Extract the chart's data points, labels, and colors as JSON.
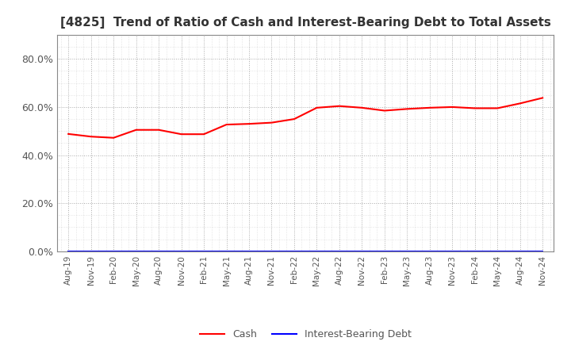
{
  "title": "[4825]  Trend of Ratio of Cash and Interest-Bearing Debt to Total Assets",
  "title_fontsize": 11,
  "ylim": [
    0.0,
    0.9
  ],
  "yticks": [
    0.0,
    0.2,
    0.4,
    0.6,
    0.8
  ],
  "ytick_labels": [
    "0.0%",
    "20.0%",
    "40.0%",
    "60.0%",
    "80.0%"
  ],
  "background_color": "#ffffff",
  "plot_bg_color": "#ffffff",
  "grid_color": "#aaaaaa",
  "cash_color": "#ff0000",
  "debt_color": "#0000ff",
  "x_labels": [
    "Aug-19",
    "Nov-19",
    "Feb-20",
    "May-20",
    "Aug-20",
    "Nov-20",
    "Feb-21",
    "May-21",
    "Aug-21",
    "Nov-21",
    "Feb-22",
    "May-22",
    "Aug-22",
    "Nov-22",
    "Feb-23",
    "May-23",
    "Aug-23",
    "Nov-23",
    "Feb-24",
    "May-24",
    "Aug-24",
    "Nov-24"
  ],
  "cash_values": [
    0.488,
    0.477,
    0.472,
    0.505,
    0.505,
    0.487,
    0.487,
    0.527,
    0.53,
    0.535,
    0.55,
    0.597,
    0.604,
    0.597,
    0.585,
    0.592,
    0.597,
    0.6,
    0.595,
    0.595,
    0.615,
    0.638
  ],
  "debt_values": [
    0.0,
    0.0,
    0.0,
    0.0,
    0.0,
    0.0,
    0.0,
    0.0,
    0.0,
    0.0,
    0.0,
    0.0,
    0.0,
    0.0,
    0.0,
    0.0,
    0.0,
    0.0,
    0.0,
    0.0,
    0.0,
    0.0
  ],
  "legend_cash": "Cash",
  "legend_debt": "Interest-Bearing Debt"
}
